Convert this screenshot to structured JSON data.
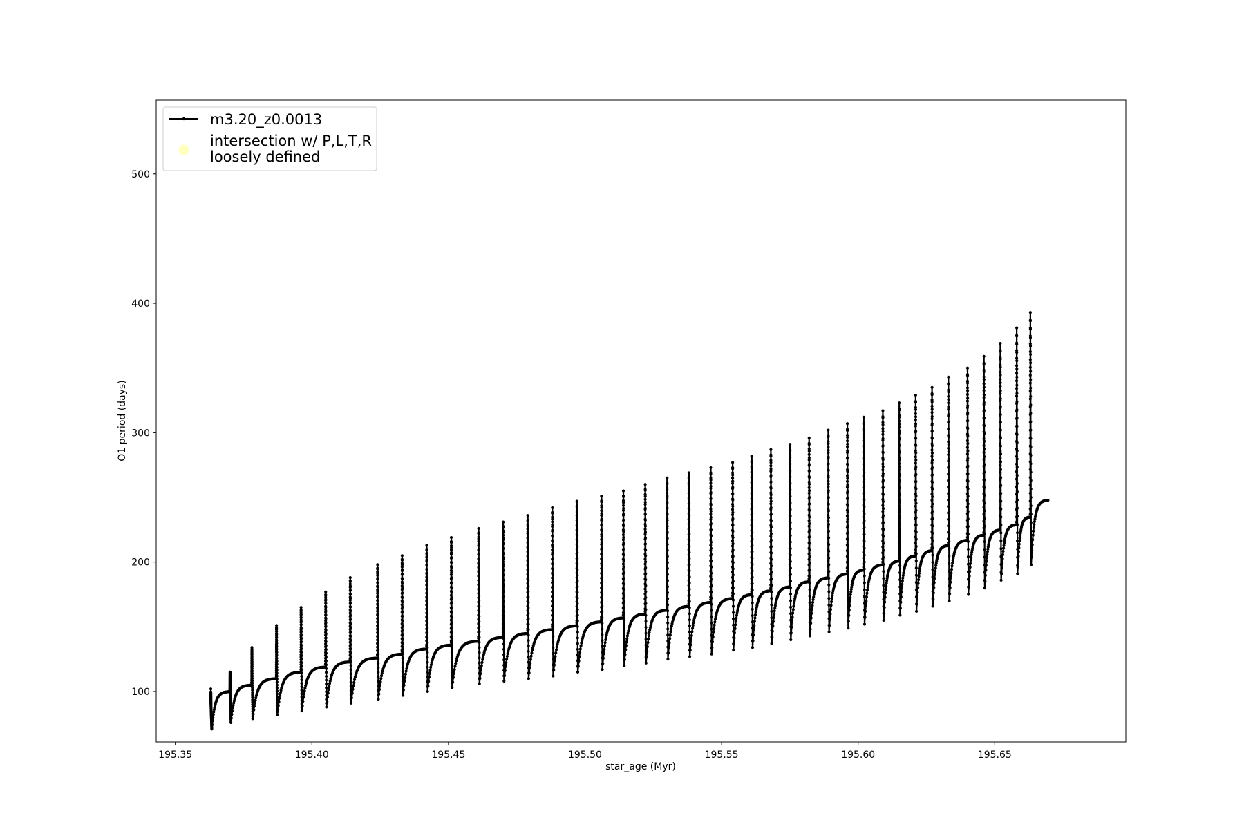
{
  "chart_data": {
    "type": "line",
    "title": "",
    "xlabel": "star_age (Myr)",
    "ylabel": "O1 period (days)",
    "xlim": [
      195.343,
      195.698
    ],
    "ylim": [
      61,
      557
    ],
    "xticks": [
      "195.35",
      "195.40",
      "195.45",
      "195.50",
      "195.55",
      "195.60",
      "195.65"
    ],
    "yticks": [
      "100",
      "200",
      "300",
      "400",
      "500"
    ],
    "grid": false,
    "legend_position": "top-left",
    "series": [
      {
        "name": "m3.20_z0.0013",
        "color": "#000000",
        "marker": "dot",
        "pulse_ages": [
          195.363,
          195.37,
          195.378,
          195.387,
          195.396,
          195.405,
          195.414,
          195.424,
          195.433,
          195.442,
          195.451,
          195.461,
          195.47,
          195.479,
          195.488,
          195.497,
          195.506,
          195.514,
          195.522,
          195.53,
          195.538,
          195.546,
          195.554,
          195.561,
          195.568,
          195.575,
          195.582,
          195.589,
          195.596,
          195.602,
          195.609,
          195.615,
          195.621,
          195.627,
          195.633,
          195.64,
          195.646,
          195.652,
          195.658,
          195.663
        ],
        "peak_periods": [
          90,
          115,
          134,
          151,
          165,
          177,
          188,
          198,
          205,
          213,
          219,
          226,
          231,
          236,
          242,
          247,
          251,
          255,
          260,
          265,
          269,
          273,
          277,
          282,
          287,
          291,
          296,
          302,
          307,
          312,
          317,
          323,
          329,
          335,
          343,
          350,
          359,
          369,
          381,
          393
        ],
        "trough_periods": [
          71,
          76,
          79,
          82,
          85,
          88,
          91,
          94,
          97,
          100,
          103,
          106,
          108,
          110,
          112,
          115,
          117,
          120,
          122,
          125,
          127,
          129,
          132,
          134,
          137,
          140,
          143,
          146,
          149,
          152,
          155,
          159,
          162,
          166,
          170,
          175,
          180,
          186,
          191,
          198
        ],
        "plateau_periods": [
          100,
          105,
          110,
          115,
          119,
          123,
          126,
          129,
          133,
          136,
          139,
          142,
          145,
          148,
          151,
          154,
          157,
          160,
          163,
          166,
          169,
          172,
          175,
          178,
          181,
          185,
          188,
          191,
          194,
          198,
          201,
          205,
          209,
          213,
          217,
          221,
          225,
          229,
          235,
          241
        ],
        "final_age": 195.6695,
        "final_period": 248
      }
    ],
    "legend_entries": [
      {
        "label": "m3.20_z0.0013",
        "kind": "line"
      },
      {
        "label": "intersection w/ P,L,T,R\nloosely defined",
        "kind": "marker",
        "color": "#ffffc0"
      }
    ]
  }
}
